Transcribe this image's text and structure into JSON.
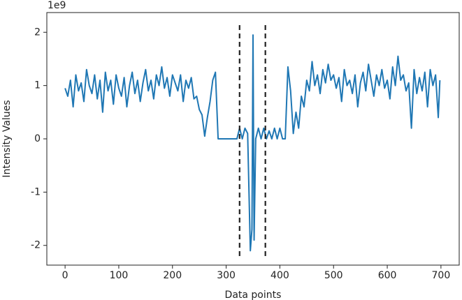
{
  "chart_data": {
    "type": "line",
    "x_label": "Data points",
    "y_label": "Intensity Values",
    "y_offset_label": "1e9",
    "x": [
      0,
      5,
      10,
      15,
      20,
      25,
      30,
      35,
      40,
      45,
      50,
      55,
      60,
      65,
      70,
      75,
      80,
      85,
      90,
      95,
      100,
      105,
      110,
      115,
      120,
      125,
      130,
      135,
      140,
      145,
      150,
      155,
      160,
      165,
      170,
      175,
      180,
      185,
      190,
      195,
      200,
      205,
      210,
      215,
      220,
      225,
      230,
      235,
      240,
      245,
      250,
      255,
      260,
      265,
      270,
      275,
      280,
      285,
      290,
      295,
      300,
      305,
      310,
      315,
      320,
      325,
      330,
      335,
      340,
      345,
      348,
      350,
      352,
      355,
      360,
      365,
      370,
      375,
      380,
      385,
      390,
      395,
      400,
      405,
      410,
      415,
      420,
      425,
      430,
      435,
      440,
      445,
      450,
      455,
      460,
      465,
      470,
      475,
      480,
      485,
      490,
      495,
      500,
      505,
      510,
      515,
      520,
      525,
      530,
      535,
      540,
      545,
      550,
      555,
      560,
      565,
      570,
      575,
      580,
      585,
      590,
      595,
      600,
      605,
      610,
      615,
      620,
      625,
      630,
      635,
      640,
      645,
      650,
      655,
      660,
      665,
      670,
      675,
      680,
      685,
      690,
      695,
      698
    ],
    "series": [
      {
        "name": "intensity",
        "color": "#1f77b4",
        "values": [
          0.95,
          0.8,
          1.1,
          0.6,
          1.2,
          0.9,
          1.05,
          0.7,
          1.3,
          1.0,
          0.85,
          1.2,
          0.75,
          1.1,
          0.5,
          1.25,
          0.9,
          1.1,
          0.65,
          1.2,
          0.95,
          0.8,
          1.15,
          0.6,
          1.0,
          1.25,
          0.85,
          1.1,
          0.7,
          1.05,
          1.3,
          0.9,
          1.1,
          0.75,
          1.2,
          1.0,
          1.35,
          0.95,
          1.15,
          0.8,
          1.2,
          1.05,
          0.9,
          1.2,
          0.7,
          1.1,
          0.95,
          1.15,
          0.75,
          0.8,
          0.55,
          0.45,
          0.05,
          0.4,
          0.7,
          1.1,
          1.25,
          0,
          0,
          0,
          0,
          0,
          0,
          0,
          0,
          0.2,
          0,
          0.2,
          0.1,
          -2.1,
          -1.7,
          1.95,
          -1.9,
          0,
          0.2,
          0,
          0.2,
          0,
          0.15,
          0,
          0.2,
          0,
          0.2,
          0,
          0,
          1.35,
          0.9,
          0.1,
          0.5,
          0.2,
          0.8,
          0.6,
          1.1,
          0.9,
          1.45,
          1.0,
          1.2,
          0.85,
          1.3,
          1.05,
          1.4,
          1.1,
          1.2,
          0.95,
          1.15,
          0.7,
          1.3,
          1.0,
          1.1,
          0.85,
          1.2,
          0.6,
          1.05,
          1.25,
          0.9,
          1.4,
          1.1,
          0.8,
          1.2,
          1.0,
          1.3,
          0.95,
          1.1,
          0.75,
          1.35,
          1.0,
          1.55,
          1.1,
          1.2,
          0.9,
          1.05,
          0.2,
          1.3,
          0.85,
          1.15,
          0.9,
          1.25,
          0.6,
          1.3,
          1.0,
          1.2,
          0.4,
          1.1
        ]
      }
    ],
    "vlines": [
      {
        "x": 325,
        "ymin": -2.2,
        "ymax": 2.15,
        "color": "#222222"
      },
      {
        "x": 373,
        "ymin": -2.2,
        "ymax": 2.15,
        "color": "#222222"
      }
    ],
    "xlim": [
      -34,
      734
    ],
    "xticks": [
      0,
      100,
      200,
      300,
      400,
      500,
      600,
      700
    ],
    "ylim": [
      -2.37,
      2.37
    ],
    "yticks": [
      -2,
      -1,
      0,
      1,
      2
    ]
  }
}
